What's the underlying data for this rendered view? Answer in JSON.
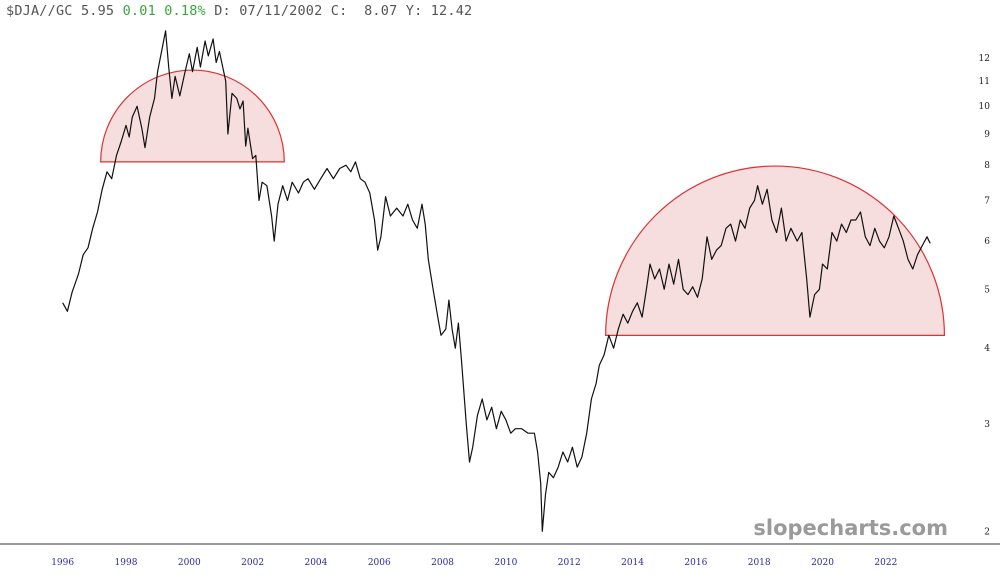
{
  "header": {
    "symbol": "$DJA//GC",
    "last": "5.95",
    "change": "0.01",
    "change_pct": "0.18%",
    "d_label": "D:",
    "date": "07/11/2002",
    "c_label": "C:",
    "close": "8.07",
    "y_label": "Y:",
    "y_value": "12.42"
  },
  "watermark": "slopecharts.com",
  "colors": {
    "line": "#111111",
    "dome_stroke": "#e03030",
    "dome_fill": "#e8a8a8",
    "axis": "#333333",
    "change_positive": "#3aa63a"
  },
  "chart_data": {
    "type": "line",
    "title": "$DJA//GC",
    "y_scale": "log",
    "ylim": [
      1.95,
      13.6
    ],
    "xlim": [
      1995.6,
      2023.9
    ],
    "x_ticks": [
      "1996",
      "1998",
      "2000",
      "2002",
      "2004",
      "2006",
      "2008",
      "2010",
      "2012",
      "2014",
      "2016",
      "2018",
      "2020",
      "2022"
    ],
    "y_ticks": [
      "2",
      "3",
      "4",
      "5",
      "6",
      "7",
      "8",
      "9",
      "10",
      "11",
      "12"
    ],
    "series": [
      {
        "values": [
          [
            1996.0,
            4.75
          ],
          [
            1996.15,
            4.6
          ],
          [
            1996.3,
            4.95
          ],
          [
            1996.5,
            5.3
          ],
          [
            1996.65,
            5.7
          ],
          [
            1996.8,
            5.85
          ],
          [
            1996.95,
            6.3
          ],
          [
            1997.1,
            6.7
          ],
          [
            1997.25,
            7.3
          ],
          [
            1997.4,
            7.8
          ],
          [
            1997.55,
            7.6
          ],
          [
            1997.7,
            8.3
          ],
          [
            1997.85,
            8.75
          ],
          [
            1998.0,
            9.3
          ],
          [
            1998.1,
            8.9
          ],
          [
            1998.2,
            9.6
          ],
          [
            1998.35,
            10.0
          ],
          [
            1998.5,
            9.2
          ],
          [
            1998.6,
            8.55
          ],
          [
            1998.75,
            9.6
          ],
          [
            1998.9,
            10.3
          ],
          [
            1999.0,
            11.4
          ],
          [
            1999.15,
            12.5
          ],
          [
            1999.25,
            13.3
          ],
          [
            1999.35,
            11.6
          ],
          [
            1999.45,
            10.3
          ],
          [
            1999.55,
            11.2
          ],
          [
            1999.7,
            10.4
          ],
          [
            1999.85,
            11.3
          ],
          [
            2000.0,
            12.2
          ],
          [
            2000.1,
            11.4
          ],
          [
            2000.25,
            12.5
          ],
          [
            2000.35,
            11.6
          ],
          [
            2000.5,
            12.8
          ],
          [
            2000.6,
            12.1
          ],
          [
            2000.75,
            12.9
          ],
          [
            2000.85,
            11.8
          ],
          [
            2000.95,
            12.3
          ],
          [
            2001.15,
            11.0
          ],
          [
            2001.22,
            9.0
          ],
          [
            2001.35,
            10.5
          ],
          [
            2001.5,
            10.3
          ],
          [
            2001.6,
            9.9
          ],
          [
            2001.7,
            10.2
          ],
          [
            2001.78,
            8.6
          ],
          [
            2001.85,
            9.2
          ],
          [
            2002.0,
            8.2
          ],
          [
            2002.1,
            8.3
          ],
          [
            2002.2,
            7.0
          ],
          [
            2002.3,
            7.5
          ],
          [
            2002.45,
            7.4
          ],
          [
            2002.6,
            6.6
          ],
          [
            2002.68,
            6.0
          ],
          [
            2002.8,
            6.9
          ],
          [
            2002.95,
            7.4
          ],
          [
            2003.1,
            7.0
          ],
          [
            2003.25,
            7.5
          ],
          [
            2003.45,
            7.2
          ],
          [
            2003.6,
            7.5
          ],
          [
            2003.75,
            7.6
          ],
          [
            2003.95,
            7.3
          ],
          [
            2004.15,
            7.6
          ],
          [
            2004.35,
            7.9
          ],
          [
            2004.55,
            7.6
          ],
          [
            2004.75,
            7.9
          ],
          [
            2004.95,
            8.0
          ],
          [
            2005.1,
            7.8
          ],
          [
            2005.25,
            8.1
          ],
          [
            2005.4,
            7.6
          ],
          [
            2005.55,
            7.5
          ],
          [
            2005.7,
            7.2
          ],
          [
            2005.85,
            6.5
          ],
          [
            2005.95,
            5.8
          ],
          [
            2006.05,
            6.1
          ],
          [
            2006.2,
            7.1
          ],
          [
            2006.35,
            6.6
          ],
          [
            2006.55,
            6.8
          ],
          [
            2006.75,
            6.6
          ],
          [
            2006.9,
            6.9
          ],
          [
            2007.05,
            6.5
          ],
          [
            2007.2,
            6.3
          ],
          [
            2007.35,
            6.9
          ],
          [
            2007.45,
            6.4
          ],
          [
            2007.55,
            5.6
          ],
          [
            2007.7,
            5.0
          ],
          [
            2007.85,
            4.5
          ],
          [
            2007.95,
            4.2
          ],
          [
            2008.1,
            4.3
          ],
          [
            2008.2,
            4.8
          ],
          [
            2008.3,
            4.3
          ],
          [
            2008.4,
            4.0
          ],
          [
            2008.5,
            4.4
          ],
          [
            2008.6,
            3.8
          ],
          [
            2008.75,
            3.0
          ],
          [
            2008.85,
            2.6
          ],
          [
            2008.95,
            2.75
          ],
          [
            2009.1,
            3.1
          ],
          [
            2009.25,
            3.3
          ],
          [
            2009.4,
            3.05
          ],
          [
            2009.55,
            3.2
          ],
          [
            2009.7,
            2.95
          ],
          [
            2009.85,
            3.15
          ],
          [
            2010.0,
            3.05
          ],
          [
            2010.15,
            2.9
          ],
          [
            2010.3,
            2.95
          ],
          [
            2010.5,
            2.95
          ],
          [
            2010.7,
            2.9
          ],
          [
            2010.9,
            2.9
          ],
          [
            2011.0,
            2.7
          ],
          [
            2011.1,
            2.4
          ],
          [
            2011.15,
            2.0
          ],
          [
            2011.25,
            2.3
          ],
          [
            2011.35,
            2.5
          ],
          [
            2011.5,
            2.45
          ],
          [
            2011.65,
            2.55
          ],
          [
            2011.8,
            2.7
          ],
          [
            2011.95,
            2.6
          ],
          [
            2012.1,
            2.75
          ],
          [
            2012.25,
            2.55
          ],
          [
            2012.4,
            2.65
          ],
          [
            2012.55,
            2.9
          ],
          [
            2012.7,
            3.3
          ],
          [
            2012.85,
            3.5
          ],
          [
            2012.95,
            3.75
          ],
          [
            2013.1,
            3.9
          ],
          [
            2013.25,
            4.2
          ],
          [
            2013.4,
            4.0
          ],
          [
            2013.55,
            4.3
          ],
          [
            2013.7,
            4.55
          ],
          [
            2013.85,
            4.4
          ],
          [
            2014.0,
            4.6
          ],
          [
            2014.15,
            4.75
          ],
          [
            2014.3,
            4.5
          ],
          [
            2014.45,
            5.05
          ],
          [
            2014.55,
            5.5
          ],
          [
            2014.7,
            5.2
          ],
          [
            2014.85,
            5.4
          ],
          [
            2015.0,
            5.0
          ],
          [
            2015.15,
            5.5
          ],
          [
            2015.3,
            5.1
          ],
          [
            2015.45,
            5.6
          ],
          [
            2015.6,
            5.0
          ],
          [
            2015.75,
            4.9
          ],
          [
            2015.9,
            5.05
          ],
          [
            2016.05,
            4.85
          ],
          [
            2016.2,
            5.2
          ],
          [
            2016.35,
            6.1
          ],
          [
            2016.5,
            5.6
          ],
          [
            2016.65,
            5.8
          ],
          [
            2016.8,
            5.9
          ],
          [
            2016.95,
            6.3
          ],
          [
            2017.1,
            6.4
          ],
          [
            2017.25,
            6.0
          ],
          [
            2017.4,
            6.5
          ],
          [
            2017.55,
            6.3
          ],
          [
            2017.7,
            6.8
          ],
          [
            2017.85,
            7.0
          ],
          [
            2017.95,
            7.4
          ],
          [
            2018.1,
            6.9
          ],
          [
            2018.25,
            7.3
          ],
          [
            2018.4,
            6.5
          ],
          [
            2018.55,
            6.2
          ],
          [
            2018.7,
            6.8
          ],
          [
            2018.85,
            6.0
          ],
          [
            2019.0,
            6.3
          ],
          [
            2019.2,
            6.0
          ],
          [
            2019.35,
            6.2
          ],
          [
            2019.5,
            5.2
          ],
          [
            2019.6,
            4.5
          ],
          [
            2019.75,
            4.9
          ],
          [
            2019.9,
            5.0
          ],
          [
            2020.0,
            5.5
          ],
          [
            2020.15,
            5.4
          ],
          [
            2020.3,
            6.2
          ],
          [
            2020.45,
            6.0
          ],
          [
            2020.6,
            6.4
          ],
          [
            2020.75,
            6.2
          ],
          [
            2020.9,
            6.5
          ],
          [
            2021.05,
            6.5
          ],
          [
            2021.2,
            6.7
          ],
          [
            2021.35,
            6.1
          ],
          [
            2021.5,
            5.9
          ],
          [
            2021.65,
            6.3
          ],
          [
            2021.8,
            6.0
          ],
          [
            2021.95,
            5.85
          ],
          [
            2022.1,
            6.1
          ],
          [
            2022.25,
            6.6
          ],
          [
            2022.4,
            6.3
          ],
          [
            2022.55,
            6.0
          ],
          [
            2022.7,
            5.6
          ],
          [
            2022.85,
            5.4
          ],
          [
            2023.0,
            5.7
          ],
          [
            2023.15,
            5.9
          ],
          [
            2023.3,
            6.1
          ],
          [
            2023.4,
            5.95
          ]
        ]
      }
    ],
    "annotations": [
      {
        "type": "half-circle",
        "base_value": 8.1,
        "from": 1997.2,
        "to": 2003.0
      },
      {
        "type": "half-circle",
        "base_value": 4.2,
        "from": 2013.15,
        "to": 2023.85
      }
    ],
    "grid": false,
    "legend": "none"
  }
}
